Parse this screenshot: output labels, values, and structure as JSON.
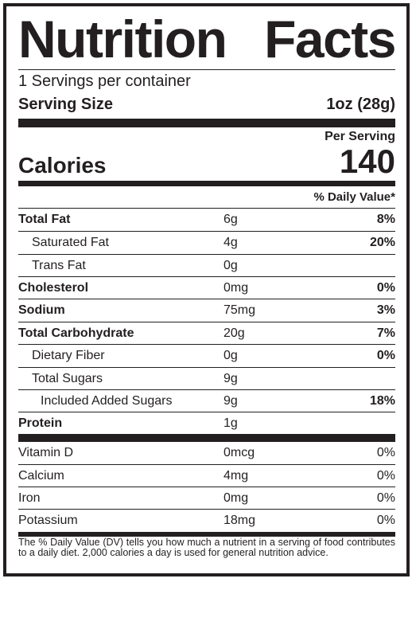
{
  "title_words": [
    "Nutrition",
    "Facts"
  ],
  "servings_per_container": "1 Servings per container",
  "serving_size_label": "Serving Size",
  "serving_size_value": "1oz (28g)",
  "per_serving": "Per Serving",
  "calories_label": "Calories",
  "calories_value": "140",
  "daily_value_header": "% Daily Value*",
  "nutrients": [
    {
      "name": "Total Fat",
      "amount": "6g",
      "dv": "8%"
    },
    {
      "name": "Saturated Fat",
      "amount": "4g",
      "dv": "20%"
    },
    {
      "name": "Trans Fat",
      "amount": "0g",
      "dv": ""
    },
    {
      "name": "Cholesterol",
      "amount": "0mg",
      "dv": "0%"
    },
    {
      "name": "Sodium",
      "amount": "75mg",
      "dv": "3%"
    },
    {
      "name": "Total Carbohydrate",
      "amount": "20g",
      "dv": "7%"
    },
    {
      "name": "Dietary Fiber",
      "amount": "0g",
      "dv": "0%"
    },
    {
      "name": "Total Sugars",
      "amount": "9g",
      "dv": ""
    },
    {
      "name": "Included Added Sugars",
      "amount": "9g",
      "dv": "18%"
    },
    {
      "name": "Protein",
      "amount": "1g",
      "dv": ""
    }
  ],
  "vitamins": [
    {
      "name": "Vitamin D",
      "amount": "0mcg",
      "dv": "0%"
    },
    {
      "name": "Calcium",
      "amount": "4mg",
      "dv": "0%"
    },
    {
      "name": "Iron",
      "amount": "0mg",
      "dv": "0%"
    },
    {
      "name": "Potassium",
      "amount": "18mg",
      "dv": "0%"
    }
  ],
  "footnote": "The % Daily Value (DV) tells you how much a nutrient in a serving of food contributes to a daily diet. 2,000 calories a day is used for general nutrition advice."
}
